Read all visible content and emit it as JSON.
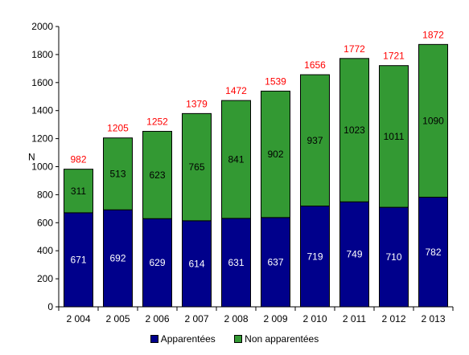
{
  "chart_data": {
    "type": "bar",
    "stacked": true,
    "categories": [
      "2 004",
      "2 005",
      "2 006",
      "2 007",
      "2 008",
      "2 009",
      "2 010",
      "2 011",
      "2 012",
      "2 013"
    ],
    "series": [
      {
        "name": "Apparentées",
        "color": "#00008B",
        "label_color": "#ffffff",
        "values": [
          671,
          692,
          629,
          614,
          631,
          637,
          719,
          749,
          710,
          782
        ]
      },
      {
        "name": "Non apparentées",
        "color": "#339933",
        "label_color": "#000000",
        "values": [
          311,
          513,
          623,
          765,
          841,
          902,
          937,
          1023,
          1011,
          1090
        ]
      }
    ],
    "totals": [
      982,
      1205,
      1252,
      1379,
      1472,
      1539,
      1656,
      1772,
      1721,
      1872
    ],
    "totals_color": "#ff0000",
    "ylabel": "N",
    "ylim": [
      0,
      2000
    ],
    "yticks": [
      0,
      200,
      400,
      600,
      800,
      1000,
      1200,
      1400,
      1600,
      1800,
      2000
    ],
    "grid": false,
    "legend_position": "bottom"
  }
}
